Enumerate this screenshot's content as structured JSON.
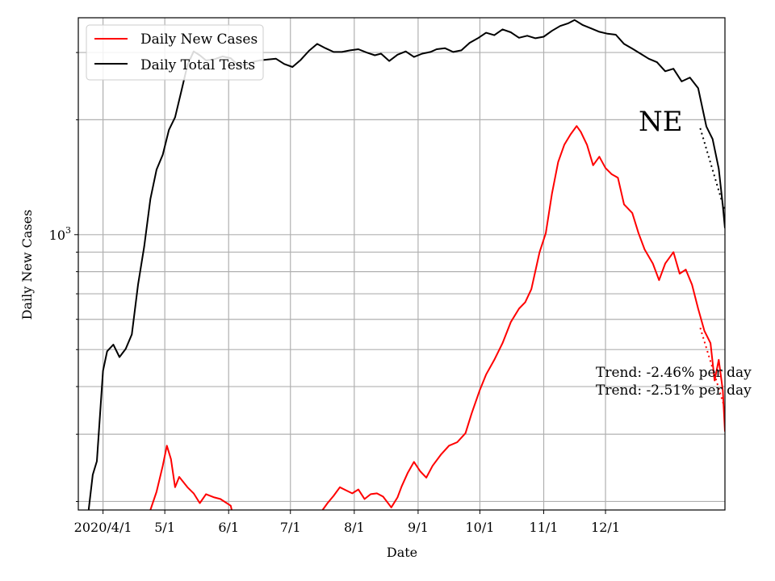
{
  "chart_data": {
    "type": "line",
    "title": "",
    "state_label": "NE",
    "xlabel": "Date",
    "ylabel": "Daily New Cases",
    "y_scale": "log",
    "ylim": [
      190,
      3700
    ],
    "y_tick_label": "10",
    "y_tick_exp": "3",
    "y_tick_value": 1000,
    "x_ticks": [
      {
        "label": "2020/4/1",
        "date": "2020-04-01"
      },
      {
        "label": "5/1",
        "date": "2020-05-01"
      },
      {
        "label": "6/1",
        "date": "2020-06-01"
      },
      {
        "label": "7/1",
        "date": "2020-07-01"
      },
      {
        "label": "8/1",
        "date": "2020-08-01"
      },
      {
        "label": "9/1",
        "date": "2020-09-01"
      },
      {
        "label": "10/1",
        "date": "2020-10-01"
      },
      {
        "label": "11/1",
        "date": "2020-11-01"
      },
      {
        "label": "12/1",
        "date": "2020-12-01"
      }
    ],
    "xlim": [
      "2020-03-20",
      "2021-01-28"
    ],
    "grid": true,
    "legend_position": "upper left",
    "colors": {
      "cases": "#ff0000",
      "tests": "#000000"
    },
    "series": [
      {
        "name": "Daily New Cases",
        "color": "#ff0000",
        "points": [
          [
            "2020-04-24",
            190
          ],
          [
            "2020-04-27",
            212
          ],
          [
            "2020-04-30",
            248
          ],
          [
            "2020-05-02",
            280
          ],
          [
            "2020-05-04",
            258
          ],
          [
            "2020-05-06",
            218
          ],
          [
            "2020-05-08",
            232
          ],
          [
            "2020-05-12",
            218
          ],
          [
            "2020-05-15",
            210
          ],
          [
            "2020-05-18",
            198
          ],
          [
            "2020-05-21",
            209
          ],
          [
            "2020-05-25",
            205
          ],
          [
            "2020-05-28",
            203
          ],
          [
            "2020-06-02",
            195
          ],
          [
            "2020-06-03",
            185
          ]
        ]
      },
      {
        "name": "Daily New Cases",
        "color": "#ff0000",
        "points": [
          [
            "2020-07-16",
            188
          ],
          [
            "2020-07-19",
            198
          ],
          [
            "2020-07-22",
            207
          ],
          [
            "2020-07-25",
            218
          ],
          [
            "2020-07-28",
            214
          ],
          [
            "2020-07-31",
            210
          ],
          [
            "2020-08-03",
            215
          ],
          [
            "2020-08-06",
            203
          ],
          [
            "2020-08-09",
            209
          ],
          [
            "2020-08-12",
            210
          ],
          [
            "2020-08-15",
            206
          ],
          [
            "2020-08-19",
            193
          ],
          [
            "2020-08-22",
            205
          ],
          [
            "2020-08-24",
            219
          ],
          [
            "2020-08-27",
            238
          ],
          [
            "2020-08-30",
            254
          ],
          [
            "2020-09-02",
            240
          ],
          [
            "2020-09-05",
            231
          ],
          [
            "2020-09-08",
            248
          ],
          [
            "2020-09-12",
            265
          ],
          [
            "2020-09-16",
            280
          ],
          [
            "2020-09-20",
            286
          ],
          [
            "2020-09-24",
            302
          ],
          [
            "2020-09-27",
            340
          ],
          [
            "2020-10-01",
            392
          ],
          [
            "2020-10-04",
            430
          ],
          [
            "2020-10-08",
            470
          ],
          [
            "2020-10-12",
            520
          ],
          [
            "2020-10-16",
            590
          ],
          [
            "2020-10-20",
            640
          ],
          [
            "2020-10-23",
            665
          ],
          [
            "2020-10-26",
            720
          ],
          [
            "2020-10-30",
            900
          ],
          [
            "2020-11-02",
            1010
          ],
          [
            "2020-11-05",
            1280
          ],
          [
            "2020-11-08",
            1550
          ],
          [
            "2020-11-11",
            1720
          ],
          [
            "2020-11-14",
            1830
          ],
          [
            "2020-11-17",
            1925
          ],
          [
            "2020-11-19",
            1860
          ],
          [
            "2020-11-22",
            1720
          ],
          [
            "2020-11-25",
            1520
          ],
          [
            "2020-11-28",
            1600
          ],
          [
            "2020-12-01",
            1495
          ],
          [
            "2020-12-04",
            1440
          ],
          [
            "2020-12-07",
            1410
          ],
          [
            "2020-12-10",
            1200
          ],
          [
            "2020-12-14",
            1140
          ],
          [
            "2020-12-17",
            1010
          ],
          [
            "2020-12-20",
            915
          ],
          [
            "2020-12-24",
            840
          ],
          [
            "2020-12-27",
            760
          ],
          [
            "2020-12-30",
            840
          ],
          [
            "2021-01-03",
            900
          ],
          [
            "2021-01-06",
            790
          ],
          [
            "2021-01-09",
            810
          ],
          [
            "2021-01-12",
            740
          ],
          [
            "2021-01-15",
            640
          ],
          [
            "2021-01-18",
            560
          ],
          [
            "2021-01-21",
            520
          ],
          [
            "2021-01-23",
            415
          ],
          [
            "2021-01-25",
            470
          ],
          [
            "2021-01-27",
            390
          ],
          [
            "2021-01-28",
            305
          ]
        ]
      },
      {
        "name": "Daily Total Tests",
        "color": "#000000",
        "points": [
          [
            "2020-03-25",
            190
          ],
          [
            "2020-03-27",
            235
          ],
          [
            "2020-03-29",
            255
          ],
          [
            "2020-04-01",
            440
          ],
          [
            "2020-04-03",
            495
          ],
          [
            "2020-04-06",
            515
          ],
          [
            "2020-04-09",
            478
          ],
          [
            "2020-04-12",
            502
          ],
          [
            "2020-04-15",
            548
          ],
          [
            "2020-04-18",
            740
          ],
          [
            "2020-04-21",
            930
          ],
          [
            "2020-04-24",
            1240
          ],
          [
            "2020-04-27",
            1480
          ],
          [
            "2020-04-30",
            1620
          ],
          [
            "2020-05-03",
            1880
          ],
          [
            "2020-05-06",
            2030
          ],
          [
            "2020-05-09",
            2370
          ],
          [
            "2020-05-12",
            2780
          ],
          [
            "2020-05-15",
            3020
          ],
          [
            "2020-05-18",
            2950
          ],
          [
            "2020-05-21",
            2860
          ],
          [
            "2020-05-25",
            2880
          ],
          [
            "2020-05-29",
            2930
          ],
          [
            "2020-06-02",
            2900
          ],
          [
            "2020-06-05",
            2800
          ],
          [
            "2020-06-09",
            2780
          ],
          [
            "2020-06-12",
            2830
          ],
          [
            "2020-06-16",
            2860
          ],
          [
            "2020-06-20",
            2875
          ],
          [
            "2020-06-24",
            2890
          ],
          [
            "2020-06-28",
            2800
          ],
          [
            "2020-07-02",
            2750
          ],
          [
            "2020-07-06",
            2870
          ],
          [
            "2020-07-10",
            3030
          ],
          [
            "2020-07-14",
            3160
          ],
          [
            "2020-07-18",
            3080
          ],
          [
            "2020-07-22",
            3010
          ],
          [
            "2020-07-26",
            3010
          ],
          [
            "2020-07-30",
            3040
          ],
          [
            "2020-08-03",
            3060
          ],
          [
            "2020-08-07",
            3000
          ],
          [
            "2020-08-11",
            2950
          ],
          [
            "2020-08-14",
            2980
          ],
          [
            "2020-08-18",
            2850
          ],
          [
            "2020-08-22",
            2960
          ],
          [
            "2020-08-26",
            3020
          ],
          [
            "2020-08-30",
            2920
          ],
          [
            "2020-09-03",
            2980
          ],
          [
            "2020-09-07",
            3010
          ],
          [
            "2020-09-10",
            3060
          ],
          [
            "2020-09-14",
            3080
          ],
          [
            "2020-09-18",
            3010
          ],
          [
            "2020-09-22",
            3040
          ],
          [
            "2020-09-26",
            3180
          ],
          [
            "2020-09-30",
            3270
          ],
          [
            "2020-10-04",
            3380
          ],
          [
            "2020-10-08",
            3330
          ],
          [
            "2020-10-12",
            3450
          ],
          [
            "2020-10-16",
            3390
          ],
          [
            "2020-10-20",
            3280
          ],
          [
            "2020-10-24",
            3320
          ],
          [
            "2020-10-28",
            3270
          ],
          [
            "2020-11-01",
            3300
          ],
          [
            "2020-11-05",
            3420
          ],
          [
            "2020-11-09",
            3520
          ],
          [
            "2020-11-13",
            3580
          ],
          [
            "2020-11-16",
            3650
          ],
          [
            "2020-11-20",
            3540
          ],
          [
            "2020-11-24",
            3470
          ],
          [
            "2020-11-28",
            3400
          ],
          [
            "2020-12-02",
            3360
          ],
          [
            "2020-12-06",
            3340
          ],
          [
            "2020-12-10",
            3160
          ],
          [
            "2020-12-14",
            3070
          ],
          [
            "2020-12-18",
            2980
          ],
          [
            "2020-12-22",
            2890
          ],
          [
            "2020-12-26",
            2830
          ],
          [
            "2020-12-30",
            2680
          ],
          [
            "2021-01-03",
            2720
          ],
          [
            "2021-01-07",
            2520
          ],
          [
            "2021-01-11",
            2580
          ],
          [
            "2021-01-15",
            2420
          ],
          [
            "2021-01-19",
            1920
          ],
          [
            "2021-01-22",
            1780
          ],
          [
            "2021-01-25",
            1490
          ],
          [
            "2021-01-27",
            1190
          ],
          [
            "2021-01-28",
            1040
          ]
        ]
      }
    ],
    "trendlines": [
      {
        "series": "Daily New Cases",
        "style": "dotted",
        "color": "#ff0000",
        "points": [
          [
            "2021-01-16",
            570
          ],
          [
            "2021-01-28",
            350
          ]
        ]
      },
      {
        "series": "Daily Total Tests",
        "style": "dotted",
        "color": "#000000",
        "points": [
          [
            "2021-01-16",
            1900
          ],
          [
            "2021-01-28",
            1150
          ]
        ]
      }
    ],
    "annotations": [
      "Trend: -2.46% per day",
      "Trend: -2.51% per day"
    ],
    "legend": [
      {
        "label": "Daily New Cases",
        "color": "#ff0000"
      },
      {
        "label": "Daily Total Tests",
        "color": "#000000"
      }
    ]
  }
}
